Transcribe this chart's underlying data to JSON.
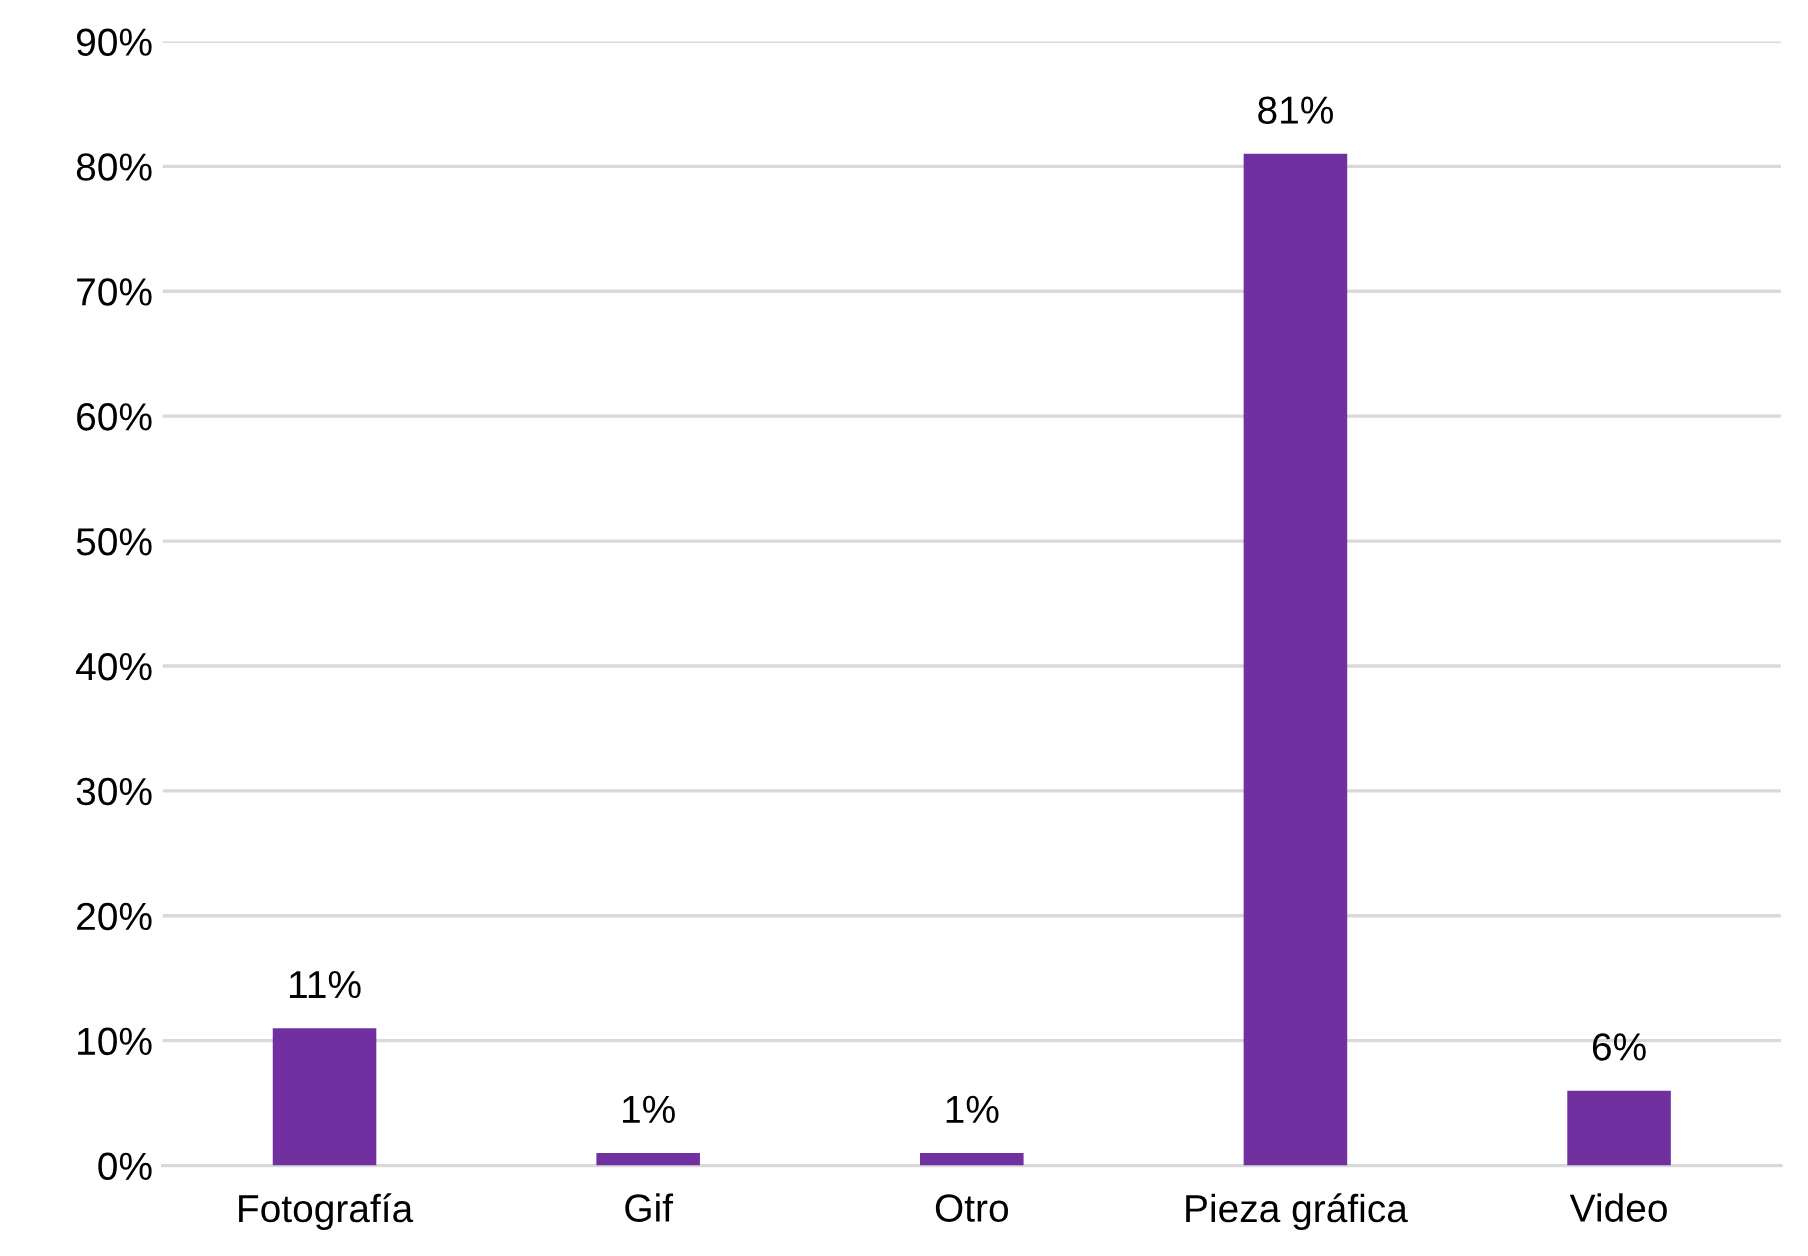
{
  "chart_data": {
    "type": "bar",
    "categories": [
      "Fotografía",
      "Gif",
      "Otro",
      "Pieza gráfica",
      "Video"
    ],
    "values": [
      11,
      1,
      1,
      81,
      6
    ],
    "value_labels": [
      "11%",
      "1%",
      "1%",
      "81%",
      "6%"
    ],
    "color": "#7030a0",
    "ylim": [
      0,
      90
    ],
    "yticks": [
      {
        "value": 0,
        "label": "0%"
      },
      {
        "value": 10,
        "label": "10%"
      },
      {
        "value": 20,
        "label": "20%"
      },
      {
        "value": 30,
        "label": "30%"
      },
      {
        "value": 40,
        "label": "40%"
      },
      {
        "value": 50,
        "label": "50%"
      },
      {
        "value": 60,
        "label": "60%"
      },
      {
        "value": 70,
        "label": "70%"
      },
      {
        "value": 80,
        "label": "80%"
      },
      {
        "value": 90,
        "label": "90%"
      }
    ],
    "grid": "y",
    "legend": false
  }
}
